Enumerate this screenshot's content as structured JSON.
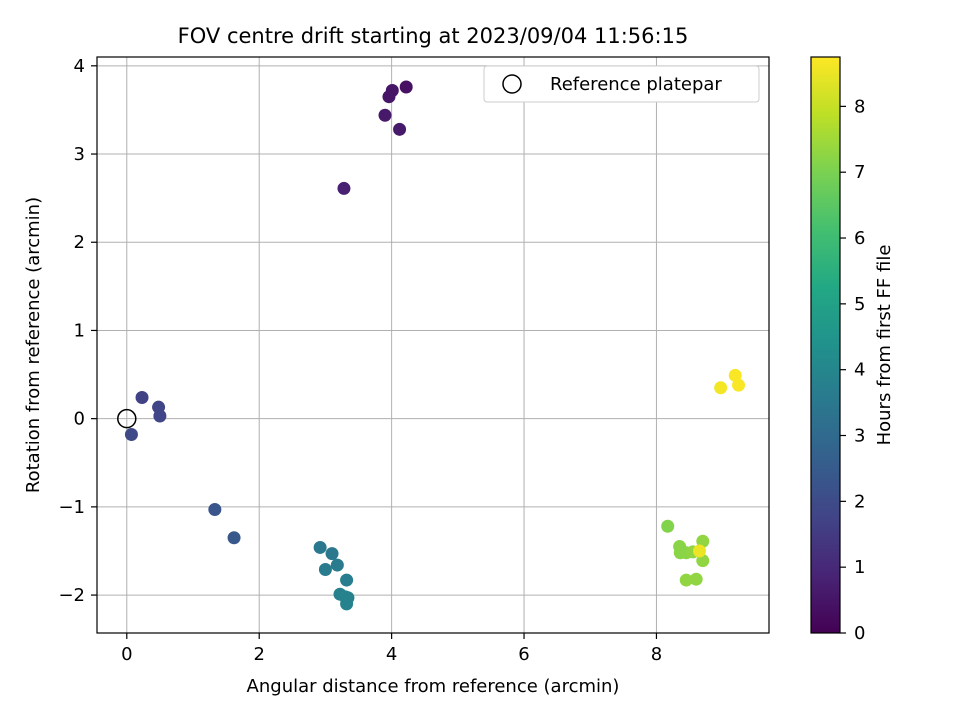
{
  "chart_data": {
    "type": "scatter",
    "title": "FOV centre drift starting at 2023/09/04 11:56:15",
    "xlabel": "Angular distance from reference (arcmin)",
    "ylabel": "Rotation from reference (arcmin)",
    "xlim": [
      -0.45,
      9.7
    ],
    "ylim": [
      -2.43,
      4.1
    ],
    "xticks": [
      0,
      2,
      4,
      6,
      8
    ],
    "yticks": [
      -2,
      -1,
      0,
      1,
      2,
      3,
      4
    ],
    "xtick_labels": [
      "0",
      "2",
      "4",
      "6",
      "8"
    ],
    "ytick_labels": [
      "−2",
      "−1",
      "0",
      "1",
      "2",
      "3",
      "4"
    ],
    "grid": true,
    "legend": {
      "position": "top-right",
      "entries": [
        "Reference platepar"
      ]
    },
    "reference_point": {
      "x": 0,
      "y": 0
    },
    "colorbar": {
      "label": "Hours from first FF file",
      "colormap": "viridis",
      "range": [
        0,
        8.75
      ],
      "ticks": [
        0,
        1,
        2,
        3,
        4,
        5,
        6,
        7,
        8
      ],
      "tick_labels": [
        "0",
        "1",
        "2",
        "3",
        "4",
        "5",
        "6",
        "7",
        "8"
      ]
    },
    "points": [
      {
        "x": 4.22,
        "y": 3.76,
        "hours": 0.4
      },
      {
        "x": 4.01,
        "y": 3.72,
        "hours": 0.5
      },
      {
        "x": 3.96,
        "y": 3.65,
        "hours": 0.5
      },
      {
        "x": 3.9,
        "y": 3.44,
        "hours": 0.6
      },
      {
        "x": 4.12,
        "y": 3.28,
        "hours": 0.6
      },
      {
        "x": 3.28,
        "y": 2.61,
        "hours": 0.8
      },
      {
        "x": 0.23,
        "y": 0.24,
        "hours": 1.7
      },
      {
        "x": 0.48,
        "y": 0.13,
        "hours": 1.8
      },
      {
        "x": 0.5,
        "y": 0.03,
        "hours": 1.8
      },
      {
        "x": 0.07,
        "y": -0.18,
        "hours": 1.9
      },
      {
        "x": 1.33,
        "y": -1.03,
        "hours": 2.3
      },
      {
        "x": 1.62,
        "y": -1.35,
        "hours": 2.4
      },
      {
        "x": 2.92,
        "y": -1.46,
        "hours": 3.5
      },
      {
        "x": 3.1,
        "y": -1.53,
        "hours": 3.5
      },
      {
        "x": 3.18,
        "y": -1.66,
        "hours": 3.6
      },
      {
        "x": 3.0,
        "y": -1.71,
        "hours": 3.6
      },
      {
        "x": 3.32,
        "y": -1.83,
        "hours": 3.7
      },
      {
        "x": 3.34,
        "y": -2.03,
        "hours": 3.8
      },
      {
        "x": 3.22,
        "y": -1.99,
        "hours": 3.8
      },
      {
        "x": 3.3,
        "y": -2.02,
        "hours": 3.9
      },
      {
        "x": 3.32,
        "y": -2.1,
        "hours": 3.9
      },
      {
        "x": 8.17,
        "y": -1.22,
        "hours": 7.1
      },
      {
        "x": 8.35,
        "y": -1.45,
        "hours": 7.2
      },
      {
        "x": 8.36,
        "y": -1.52,
        "hours": 7.2
      },
      {
        "x": 8.45,
        "y": -1.52,
        "hours": 7.2
      },
      {
        "x": 8.55,
        "y": -1.51,
        "hours": 7.3
      },
      {
        "x": 8.7,
        "y": -1.39,
        "hours": 7.3
      },
      {
        "x": 8.7,
        "y": -1.61,
        "hours": 7.3
      },
      {
        "x": 8.45,
        "y": -1.83,
        "hours": 7.3
      },
      {
        "x": 8.6,
        "y": -1.82,
        "hours": 7.3
      },
      {
        "x": 8.65,
        "y": -1.5,
        "hours": 8.5
      },
      {
        "x": 8.97,
        "y": 0.35,
        "hours": 8.6
      },
      {
        "x": 9.19,
        "y": 0.49,
        "hours": 8.7
      },
      {
        "x": 9.24,
        "y": 0.38,
        "hours": 8.7
      }
    ]
  }
}
